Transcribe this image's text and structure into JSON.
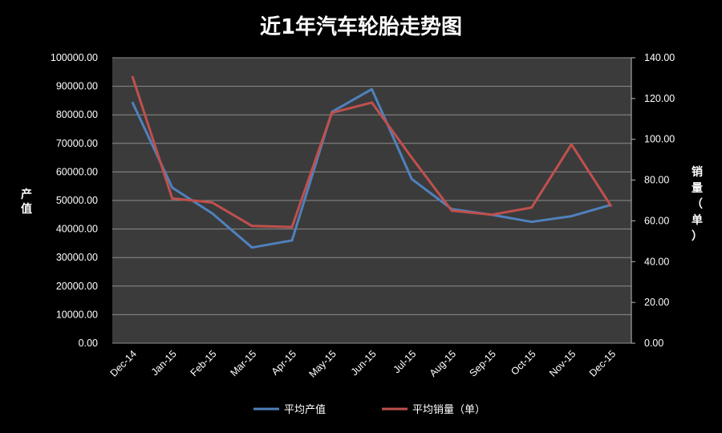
{
  "chart_data": {
    "type": "line",
    "title": "近1年汽车轮胎走势图",
    "categories": [
      "Dec-14",
      "Jan-15",
      "Feb-15",
      "Mar-15",
      "Apr-15",
      "May-15",
      "Jun-15",
      "Jul-15",
      "Aug-15",
      "Sep-15",
      "Oct-15",
      "Nov-15",
      "Dec-15"
    ],
    "series": [
      {
        "name": "平均产值",
        "axis": "left",
        "color": "#4f81bd",
        "values": [
          84500,
          54500,
          45500,
          33500,
          36000,
          81000,
          89000,
          57500,
          47000,
          45000,
          42500,
          44500,
          48500
        ]
      },
      {
        "name": "平均销量（单）",
        "axis": "right",
        "color": "#c0504d",
        "values": [
          131,
          71,
          69,
          57.5,
          57,
          113,
          118,
          91,
          65,
          63,
          66.5,
          97.5,
          67
        ]
      }
    ],
    "ylabel_left": "产值",
    "ylabel_right": "销量（单）",
    "ylim_left": [
      0,
      100000
    ],
    "ylim_right": [
      0,
      140
    ],
    "yticks_left": [
      "0.00",
      "10000.00",
      "20000.00",
      "30000.00",
      "40000.00",
      "50000.00",
      "60000.00",
      "70000.00",
      "80000.00",
      "90000.00",
      "100000.00"
    ],
    "yticks_right": [
      "0.00",
      "20.00",
      "40.00",
      "60.00",
      "80.00",
      "100.00",
      "120.00",
      "140.00"
    ],
    "grid": true,
    "legend_position": "bottom",
    "colors": {
      "background": "#000000",
      "plot_background": "#3b3b3b",
      "grid": "#8c8c8c"
    }
  }
}
